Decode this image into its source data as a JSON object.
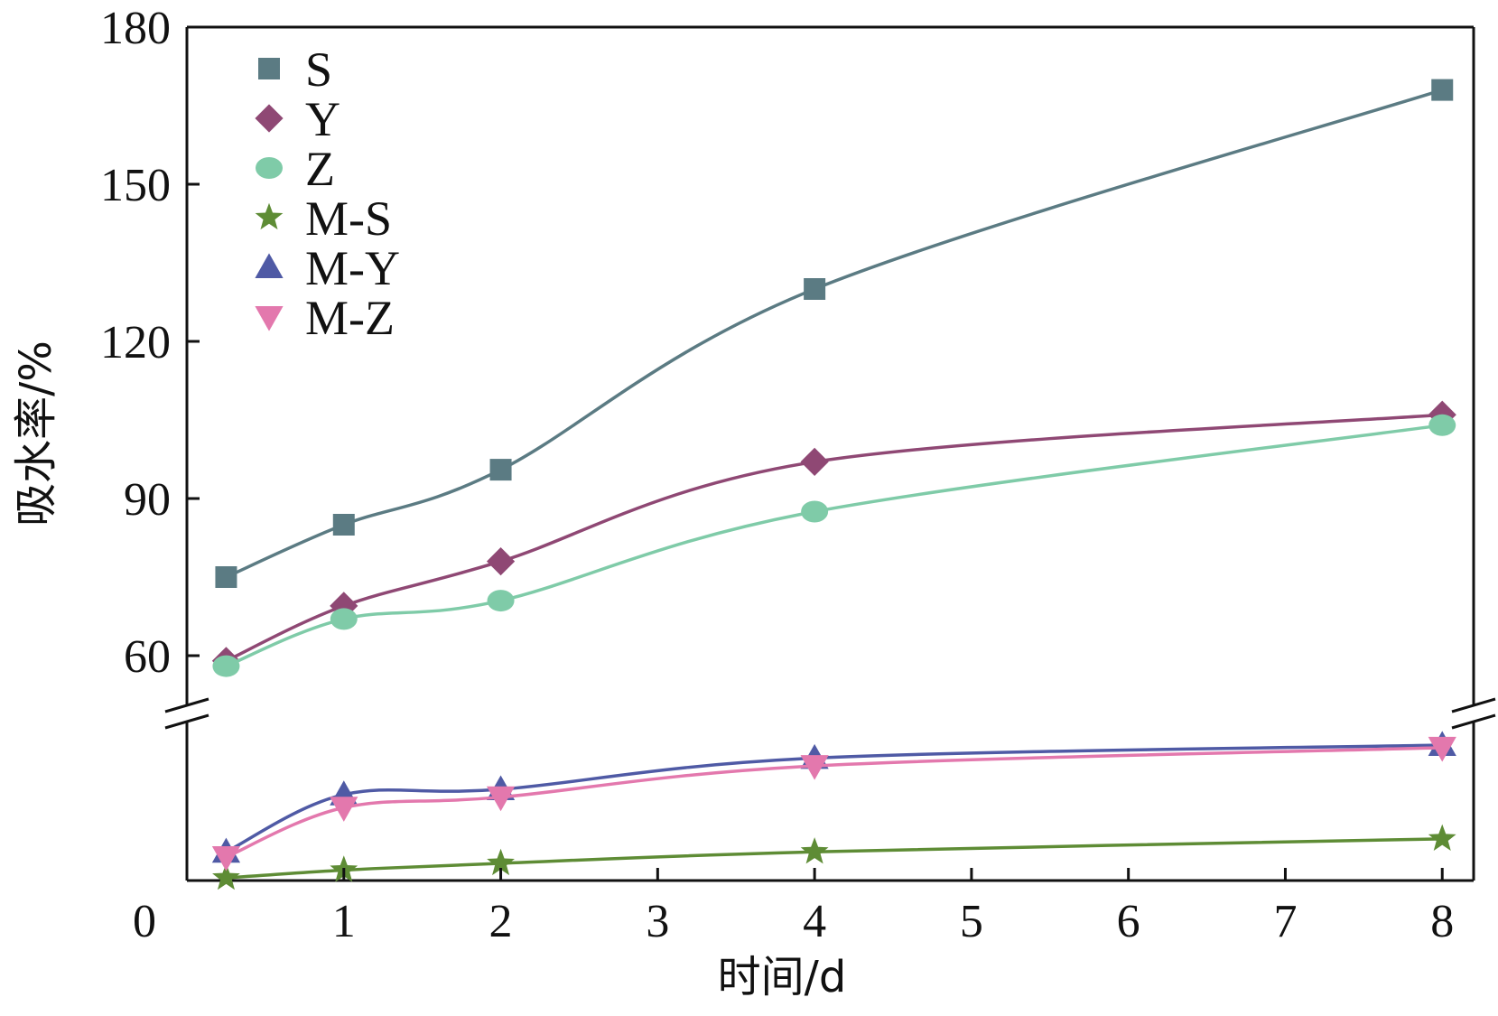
{
  "chart_data": {
    "type": "line",
    "xlabel": "时间/d",
    "ylabel": "吸水率/%",
    "xlim": [
      0,
      8.2
    ],
    "x_ticks": [
      1,
      2,
      3,
      4,
      5,
      6,
      7,
      8
    ],
    "x_tick_labels": [
      "1",
      "2",
      "3",
      "4",
      "5",
      "6",
      "7",
      "8"
    ],
    "origin_label": "0",
    "y_axis_break": true,
    "y_upper_range": [
      55,
      180
    ],
    "y_upper_ticks": [
      60,
      90,
      120,
      150,
      180
    ],
    "y_upper_tick_labels": [
      "60",
      "90",
      "120",
      "150",
      "180"
    ],
    "y_lower_range": [
      0,
      26
    ],
    "legend_position": "top-left",
    "grid": false,
    "x": [
      0.25,
      1,
      2,
      4,
      8
    ],
    "series": [
      {
        "name": "S",
        "marker": "square",
        "color": "#5b7b83",
        "values": [
          75,
          85,
          95.5,
          130,
          168
        ]
      },
      {
        "name": "Y",
        "marker": "diamond",
        "color": "#8f4874",
        "values": [
          59,
          69.5,
          78,
          97,
          106
        ]
      },
      {
        "name": "Z",
        "marker": "circle",
        "color": "#7fcba8",
        "values": [
          58,
          67,
          70.5,
          87.5,
          104
        ]
      },
      {
        "name": "M-S",
        "marker": "star",
        "color": "#5e8c35",
        "values": [
          0.5,
          2,
          3.3,
          5.5,
          8
        ]
      },
      {
        "name": "M-Y",
        "marker": "triangle-up",
        "color": "#4f5aa5",
        "values": [
          5.5,
          16.5,
          17.5,
          23.5,
          26
        ]
      },
      {
        "name": "M-Z",
        "marker": "triangle-down",
        "color": "#e378ad",
        "values": [
          4.5,
          14,
          16,
          22,
          25.5
        ]
      }
    ]
  }
}
